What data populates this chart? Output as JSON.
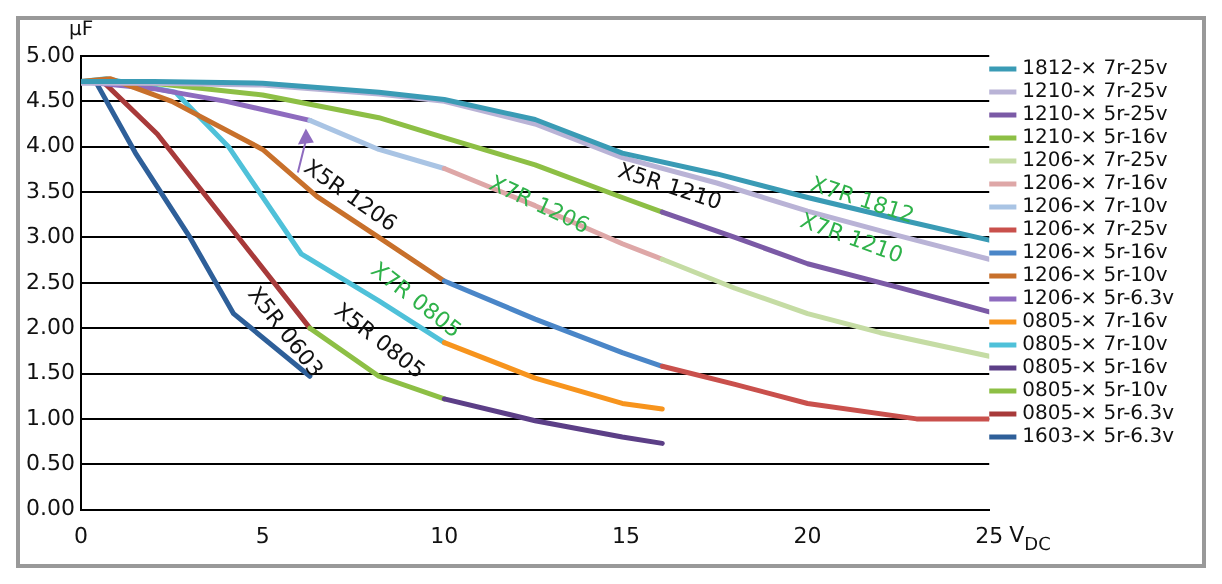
{
  "chart_data": {
    "type": "line",
    "xlabel": "V$_{DC}$",
    "ylabel": "µF",
    "xlim": [
      0,
      25
    ],
    "ylim": [
      0,
      5
    ],
    "xticks": [
      0,
      5,
      10,
      15,
      20,
      25
    ],
    "yticks": [
      {
        "value": 0,
        "label": "0.00"
      },
      {
        "value": 0.5,
        "label": "0.50"
      },
      {
        "value": 1,
        "label": "1.00"
      },
      {
        "value": 1.5,
        "label": "1.50"
      },
      {
        "value": 2,
        "label": "2.00"
      },
      {
        "value": 2.5,
        "label": "2.50"
      },
      {
        "value": 3,
        "label": "3.00"
      },
      {
        "value": 3.5,
        "label": "3.50"
      },
      {
        "value": 4,
        "label": "4.00"
      },
      {
        "value": 4.5,
        "label": "4.50"
      },
      {
        "value": 5,
        "label": "5.00"
      }
    ],
    "grid": "y",
    "legend": "right",
    "marker": "none",
    "line_style": "solid",
    "series": [
      {
        "name": "1812-× 7r-25v",
        "color": "#3a9bb5",
        "x": [
          0,
          2,
          5,
          8.2,
          10,
          12.5,
          14.9,
          17.5,
          20,
          22.5,
          25
        ],
        "values": [
          4.72,
          4.72,
          4.7,
          4.6,
          4.52,
          4.3,
          3.93,
          3.7,
          3.44,
          3.2,
          2.97
        ]
      },
      {
        "name": "1210-× 7r-25v",
        "color": "#b9b3d6",
        "x": [
          0,
          2,
          5,
          8.2,
          10,
          12.5,
          14.9,
          17.5,
          20,
          22.5,
          25
        ],
        "values": [
          4.7,
          4.7,
          4.68,
          4.58,
          4.5,
          4.25,
          3.88,
          3.6,
          3.29,
          3.02,
          2.76
        ]
      },
      {
        "name": "1210-× 5r-25v",
        "color": "#7b5aa6",
        "x": [
          16,
          18,
          20,
          22.5,
          25
        ],
        "values": [
          3.28,
          3.0,
          2.71,
          2.45,
          2.18
        ]
      },
      {
        "name": "1210-× 5r-16v",
        "color": "#8dbf45",
        "x": [
          0,
          2,
          5,
          8.2,
          10,
          12.5,
          14.9,
          16
        ],
        "values": [
          4.72,
          4.7,
          4.57,
          4.32,
          4.1,
          3.8,
          3.44,
          3.28
        ]
      },
      {
        "name": "1206-× 7r-25v",
        "color": "#c5dca4",
        "x": [
          16,
          18,
          20,
          22,
          25
        ],
        "values": [
          2.76,
          2.44,
          2.16,
          1.95,
          1.69
        ]
      },
      {
        "name": "1206-× 7r-16v",
        "color": "#dea7a7",
        "x": [
          10,
          12.5,
          14.9,
          16
        ],
        "values": [
          3.76,
          3.35,
          2.93,
          2.76
        ]
      },
      {
        "name": "1206-× 7r-10v",
        "color": "#a9c4e4",
        "x": [
          6.3,
          8.2,
          10
        ],
        "values": [
          4.29,
          3.97,
          3.76
        ]
      },
      {
        "name": "1206-× 7r-25v",
        "color": "#c9504c",
        "x": [
          16,
          18,
          20,
          23,
          25
        ],
        "values": [
          1.58,
          1.38,
          1.17,
          1.0,
          1.0
        ]
      },
      {
        "name": "1206-× 5r-16v",
        "color": "#4a86c8",
        "x": [
          10,
          12.5,
          14.9,
          16
        ],
        "values": [
          2.52,
          2.1,
          1.73,
          1.58
        ]
      },
      {
        "name": "1206-× 5r-10v",
        "color": "#c8702b",
        "x": [
          0,
          0.8,
          2.5,
          5,
          6.5,
          8.2,
          10
        ],
        "values": [
          4.72,
          4.75,
          4.5,
          3.97,
          3.45,
          3.0,
          2.52
        ]
      },
      {
        "name": "1206-× 5r-6.3v",
        "color": "#8e6bbf",
        "x": [
          0,
          2,
          4,
          6.3
        ],
        "values": [
          4.72,
          4.64,
          4.5,
          4.29
        ]
      },
      {
        "name": "0805-× 7r-16v",
        "color": "#f7941d",
        "x": [
          10,
          12.5,
          14.9,
          16
        ],
        "values": [
          1.84,
          1.45,
          1.17,
          1.11
        ]
      },
      {
        "name": "0805-× 7r-10v",
        "color": "#4fc1d9",
        "x": [
          0,
          0.7,
          2.6,
          4.06,
          6.06,
          8.2,
          10
        ],
        "values": [
          4.72,
          4.75,
          4.6,
          4.0,
          2.82,
          2.3,
          1.84
        ]
      },
      {
        "name": "0805-× 5r-16v",
        "color": "#5c3f87",
        "x": [
          10,
          12.5,
          14.9,
          16
        ],
        "values": [
          1.22,
          0.98,
          0.8,
          0.73
        ]
      },
      {
        "name": "0805-× 5r-10v",
        "color": "#8dbf45",
        "x": [
          6.3,
          8.2,
          10
        ],
        "values": [
          2.0,
          1.47,
          1.22
        ]
      },
      {
        "name": "0805-× 5r-6.3v",
        "color": "#a83a3a",
        "x": [
          0,
          0.6,
          2.1,
          4.06,
          6.3
        ],
        "values": [
          4.72,
          4.72,
          4.14,
          3.14,
          2.0
        ]
      },
      {
        "name": "1603-× 5r-6.3v",
        "color": "#2e5f99",
        "x": [
          0,
          0.4,
          1.5,
          3.0,
          4.2,
          6.3
        ],
        "values": [
          4.72,
          4.72,
          3.93,
          3.0,
          2.16,
          1.47
        ]
      }
    ],
    "annotations": [
      "X5R 1206",
      "X7R 1206",
      "X5R 1210",
      "X7R 1812",
      "X7R 1210",
      "X7R 0805",
      "X5R 0805",
      "X5R 0603"
    ]
  }
}
